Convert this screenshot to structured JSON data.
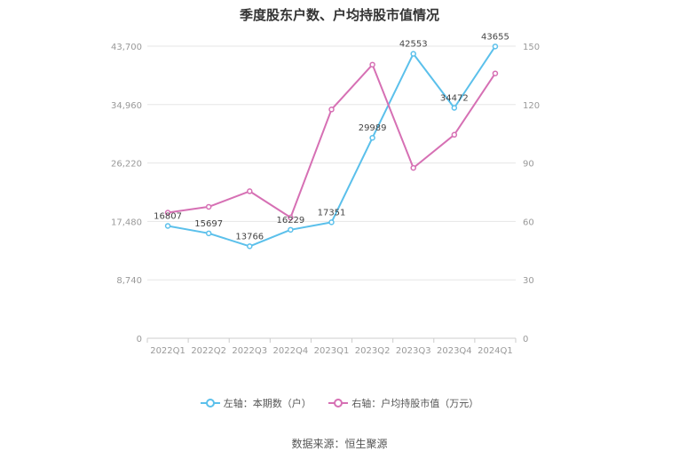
{
  "chart_data": {
    "type": "line",
    "title": "季度股东户数、户均持股市值情况",
    "categories": [
      "2022Q1",
      "2022Q2",
      "2022Q3",
      "2022Q4",
      "2023Q1",
      "2023Q2",
      "2023Q3",
      "2023Q4",
      "2024Q1"
    ],
    "left_axis": {
      "ticks": [
        "0",
        "8,740",
        "17,480",
        "26,220",
        "34,960",
        "43,700"
      ],
      "ylim": [
        0,
        43700
      ]
    },
    "right_axis": {
      "ticks": [
        "0",
        "30",
        "60",
        "90",
        "120",
        "150"
      ],
      "ylim": [
        0,
        150
      ]
    },
    "series": [
      {
        "name": "左轴：本期数（户）",
        "axis": "left",
        "color": "#5bc0eb",
        "values": [
          16807,
          15697,
          13766,
          16229,
          17351,
          29989,
          42553,
          34472,
          43655
        ],
        "labels": [
          "16807",
          "15697",
          "13766",
          "16229",
          "17351",
          "29989",
          "42553",
          "34472",
          "43655"
        ]
      },
      {
        "name": "右轴：户均持股市值（万元）",
        "axis": "right",
        "color": "#d670b4",
        "values": [
          64.5,
          67.5,
          75.5,
          62,
          117.5,
          140.5,
          87.5,
          104.5,
          136
        ]
      }
    ],
    "grid": true,
    "legend_position": "bottom"
  },
  "footer": {
    "source": "数据来源：恒生聚源"
  }
}
